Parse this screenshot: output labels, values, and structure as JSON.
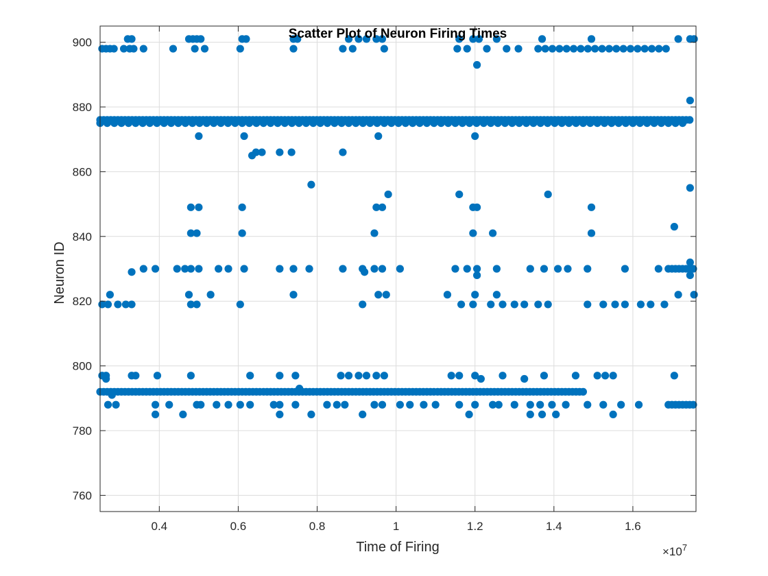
{
  "chart_data": {
    "type": "scatter",
    "title": "Scatter Plot of Neuron Firing Times",
    "xlabel": "Time of Firing",
    "ylabel": "Neuron ID",
    "xlim": [
      2500000,
      17600000
    ],
    "ylim": [
      755,
      905
    ],
    "x_ticks": [
      4000000,
      6000000,
      8000000,
      10000000,
      12000000,
      14000000,
      16000000
    ],
    "x_tick_labels": [
      "0.4",
      "0.6",
      "0.8",
      "1",
      "1.2",
      "1.4",
      "1.6"
    ],
    "x_exponent_label": "×10",
    "x_exponent_power": "7",
    "y_ticks": [
      760,
      780,
      800,
      820,
      840,
      860,
      880,
      900
    ],
    "y_tick_labels": [
      "760",
      "780",
      "800",
      "820",
      "840",
      "860",
      "880",
      "900"
    ],
    "grid": true,
    "marker_color": "#0072bd",
    "series": [
      {
        "bands": [
          {
            "y": 876,
            "x_start": 2500000,
            "x_end": 17500000,
            "step": 90000
          },
          {
            "y": 875,
            "x_start": 2500000,
            "x_end": 17300000,
            "step": 180000
          },
          {
            "y": 792,
            "x_start": 2500000,
            "x_end": 14800000,
            "step": 90000
          },
          {
            "y": 788,
            "x_start": 16900000,
            "x_end": 17600000,
            "step": 90000
          },
          {
            "y": 898,
            "x_start": 13600000,
            "x_end": 17000000,
            "step": 180000
          },
          {
            "y": 830,
            "x_start": 16900000,
            "x_end": 17600000,
            "step": 90000
          }
        ],
        "points": [
          [
            2550000,
            898
          ],
          [
            2650000,
            898
          ],
          [
            2750000,
            898
          ],
          [
            2850000,
            898
          ],
          [
            3100000,
            898
          ],
          [
            3250000,
            898
          ],
          [
            3350000,
            898
          ],
          [
            3600000,
            898
          ],
          [
            4350000,
            898
          ],
          [
            4900000,
            898
          ],
          [
            5150000,
            898
          ],
          [
            6050000,
            898
          ],
          [
            7400000,
            898
          ],
          [
            8650000,
            898
          ],
          [
            8900000,
            898
          ],
          [
            9700000,
            898
          ],
          [
            11550000,
            898
          ],
          [
            11800000,
            898
          ],
          [
            12300000,
            898
          ],
          [
            12800000,
            898
          ],
          [
            13100000,
            898
          ],
          [
            3200000,
            901
          ],
          [
            3300000,
            901
          ],
          [
            4750000,
            901
          ],
          [
            4850000,
            901
          ],
          [
            4950000,
            901
          ],
          [
            5050000,
            901
          ],
          [
            6100000,
            901
          ],
          [
            6200000,
            901
          ],
          [
            7400000,
            901
          ],
          [
            7500000,
            901
          ],
          [
            8800000,
            901
          ],
          [
            9050000,
            901
          ],
          [
            9250000,
            901
          ],
          [
            9500000,
            901
          ],
          [
            9650000,
            901
          ],
          [
            11600000,
            901
          ],
          [
            11950000,
            901
          ],
          [
            12100000,
            901
          ],
          [
            12550000,
            901
          ],
          [
            13700000,
            901
          ],
          [
            14950000,
            901
          ],
          [
            17150000,
            901
          ],
          [
            17450000,
            901
          ],
          [
            17550000,
            901
          ],
          [
            12050000,
            893
          ],
          [
            17450000,
            882
          ],
          [
            5000000,
            871
          ],
          [
            6150000,
            871
          ],
          [
            9550000,
            871
          ],
          [
            12000000,
            871
          ],
          [
            6350000,
            865
          ],
          [
            6450000,
            866
          ],
          [
            6600000,
            866
          ],
          [
            7050000,
            866
          ],
          [
            7350000,
            866
          ],
          [
            8650000,
            866
          ],
          [
            7850000,
            856
          ],
          [
            9800000,
            853
          ],
          [
            11600000,
            853
          ],
          [
            13850000,
            853
          ],
          [
            17450000,
            855
          ],
          [
            4800000,
            849
          ],
          [
            5000000,
            849
          ],
          [
            6100000,
            849
          ],
          [
            9500000,
            849
          ],
          [
            9650000,
            849
          ],
          [
            11950000,
            849
          ],
          [
            12050000,
            849
          ],
          [
            14950000,
            849
          ],
          [
            4800000,
            841
          ],
          [
            4950000,
            841
          ],
          [
            6100000,
            841
          ],
          [
            9450000,
            841
          ],
          [
            11950000,
            841
          ],
          [
            12450000,
            841
          ],
          [
            14950000,
            841
          ],
          [
            17050000,
            843
          ],
          [
            3300000,
            829
          ],
          [
            3600000,
            830
          ],
          [
            3900000,
            830
          ],
          [
            4450000,
            830
          ],
          [
            4650000,
            830
          ],
          [
            4800000,
            830
          ],
          [
            5000000,
            830
          ],
          [
            5500000,
            830
          ],
          [
            5750000,
            830
          ],
          [
            6150000,
            830
          ],
          [
            7050000,
            830
          ],
          [
            7400000,
            830
          ],
          [
            7800000,
            830
          ],
          [
            8650000,
            830
          ],
          [
            9150000,
            830
          ],
          [
            9450000,
            830
          ],
          [
            9650000,
            830
          ],
          [
            10100000,
            830
          ],
          [
            11500000,
            830
          ],
          [
            11800000,
            830
          ],
          [
            12050000,
            830
          ],
          [
            12550000,
            830
          ],
          [
            13400000,
            830
          ],
          [
            13750000,
            830
          ],
          [
            14100000,
            830
          ],
          [
            14350000,
            830
          ],
          [
            14850000,
            830
          ],
          [
            15800000,
            830
          ],
          [
            16650000,
            830
          ],
          [
            9200000,
            829
          ],
          [
            12050000,
            828
          ],
          [
            17450000,
            832
          ],
          [
            17450000,
            828
          ],
          [
            2550000,
            819
          ],
          [
            2700000,
            819
          ],
          [
            2950000,
            819
          ],
          [
            3150000,
            819
          ],
          [
            3300000,
            819
          ],
          [
            4800000,
            819
          ],
          [
            4950000,
            819
          ],
          [
            6050000,
            819
          ],
          [
            9150000,
            819
          ],
          [
            11650000,
            819
          ],
          [
            11950000,
            819
          ],
          [
            12400000,
            819
          ],
          [
            12700000,
            819
          ],
          [
            13000000,
            819
          ],
          [
            13250000,
            819
          ],
          [
            13600000,
            819
          ],
          [
            13850000,
            819
          ],
          [
            14850000,
            819
          ],
          [
            15250000,
            819
          ],
          [
            15550000,
            819
          ],
          [
            15800000,
            819
          ],
          [
            16200000,
            819
          ],
          [
            16450000,
            819
          ],
          [
            16800000,
            819
          ],
          [
            2750000,
            822
          ],
          [
            4750000,
            822
          ],
          [
            5300000,
            822
          ],
          [
            7400000,
            822
          ],
          [
            9550000,
            822
          ],
          [
            9750000,
            822
          ],
          [
            11300000,
            822
          ],
          [
            12000000,
            822
          ],
          [
            12550000,
            822
          ],
          [
            17150000,
            822
          ],
          [
            17550000,
            822
          ],
          [
            2550000,
            797
          ],
          [
            2650000,
            797
          ],
          [
            2650000,
            796
          ],
          [
            3300000,
            797
          ],
          [
            3400000,
            797
          ],
          [
            3950000,
            797
          ],
          [
            4800000,
            797
          ],
          [
            6300000,
            797
          ],
          [
            7050000,
            797
          ],
          [
            7450000,
            797
          ],
          [
            8600000,
            797
          ],
          [
            8800000,
            797
          ],
          [
            9050000,
            797
          ],
          [
            9250000,
            797
          ],
          [
            9500000,
            797
          ],
          [
            9700000,
            797
          ],
          [
            11400000,
            797
          ],
          [
            11600000,
            797
          ],
          [
            12000000,
            797
          ],
          [
            12150000,
            796
          ],
          [
            12700000,
            797
          ],
          [
            13250000,
            796
          ],
          [
            13750000,
            797
          ],
          [
            14550000,
            797
          ],
          [
            15100000,
            797
          ],
          [
            15300000,
            797
          ],
          [
            15500000,
            797
          ],
          [
            17050000,
            797
          ],
          [
            2800000,
            791
          ],
          [
            7550000,
            793
          ],
          [
            2700000,
            788
          ],
          [
            2900000,
            788
          ],
          [
            3900000,
            788
          ],
          [
            4250000,
            788
          ],
          [
            4950000,
            788
          ],
          [
            5050000,
            788
          ],
          [
            5450000,
            788
          ],
          [
            5750000,
            788
          ],
          [
            6050000,
            788
          ],
          [
            6300000,
            788
          ],
          [
            6900000,
            788
          ],
          [
            7050000,
            788
          ],
          [
            7450000,
            788
          ],
          [
            8250000,
            788
          ],
          [
            8500000,
            788
          ],
          [
            8700000,
            788
          ],
          [
            9450000,
            788
          ],
          [
            9650000,
            788
          ],
          [
            10100000,
            788
          ],
          [
            10350000,
            788
          ],
          [
            10700000,
            788
          ],
          [
            11000000,
            788
          ],
          [
            11600000,
            788
          ],
          [
            12000000,
            788
          ],
          [
            12450000,
            788
          ],
          [
            12600000,
            788
          ],
          [
            13000000,
            788
          ],
          [
            13400000,
            788
          ],
          [
            13650000,
            788
          ],
          [
            13950000,
            788
          ],
          [
            14300000,
            788
          ],
          [
            14850000,
            788
          ],
          [
            15250000,
            788
          ],
          [
            15700000,
            788
          ],
          [
            16150000,
            788
          ],
          [
            3900000,
            785
          ],
          [
            4600000,
            785
          ],
          [
            7050000,
            785
          ],
          [
            7850000,
            785
          ],
          [
            9150000,
            785
          ],
          [
            11850000,
            785
          ],
          [
            13400000,
            785
          ],
          [
            13700000,
            785
          ],
          [
            14050000,
            785
          ],
          [
            15500000,
            785
          ]
        ]
      }
    ]
  }
}
